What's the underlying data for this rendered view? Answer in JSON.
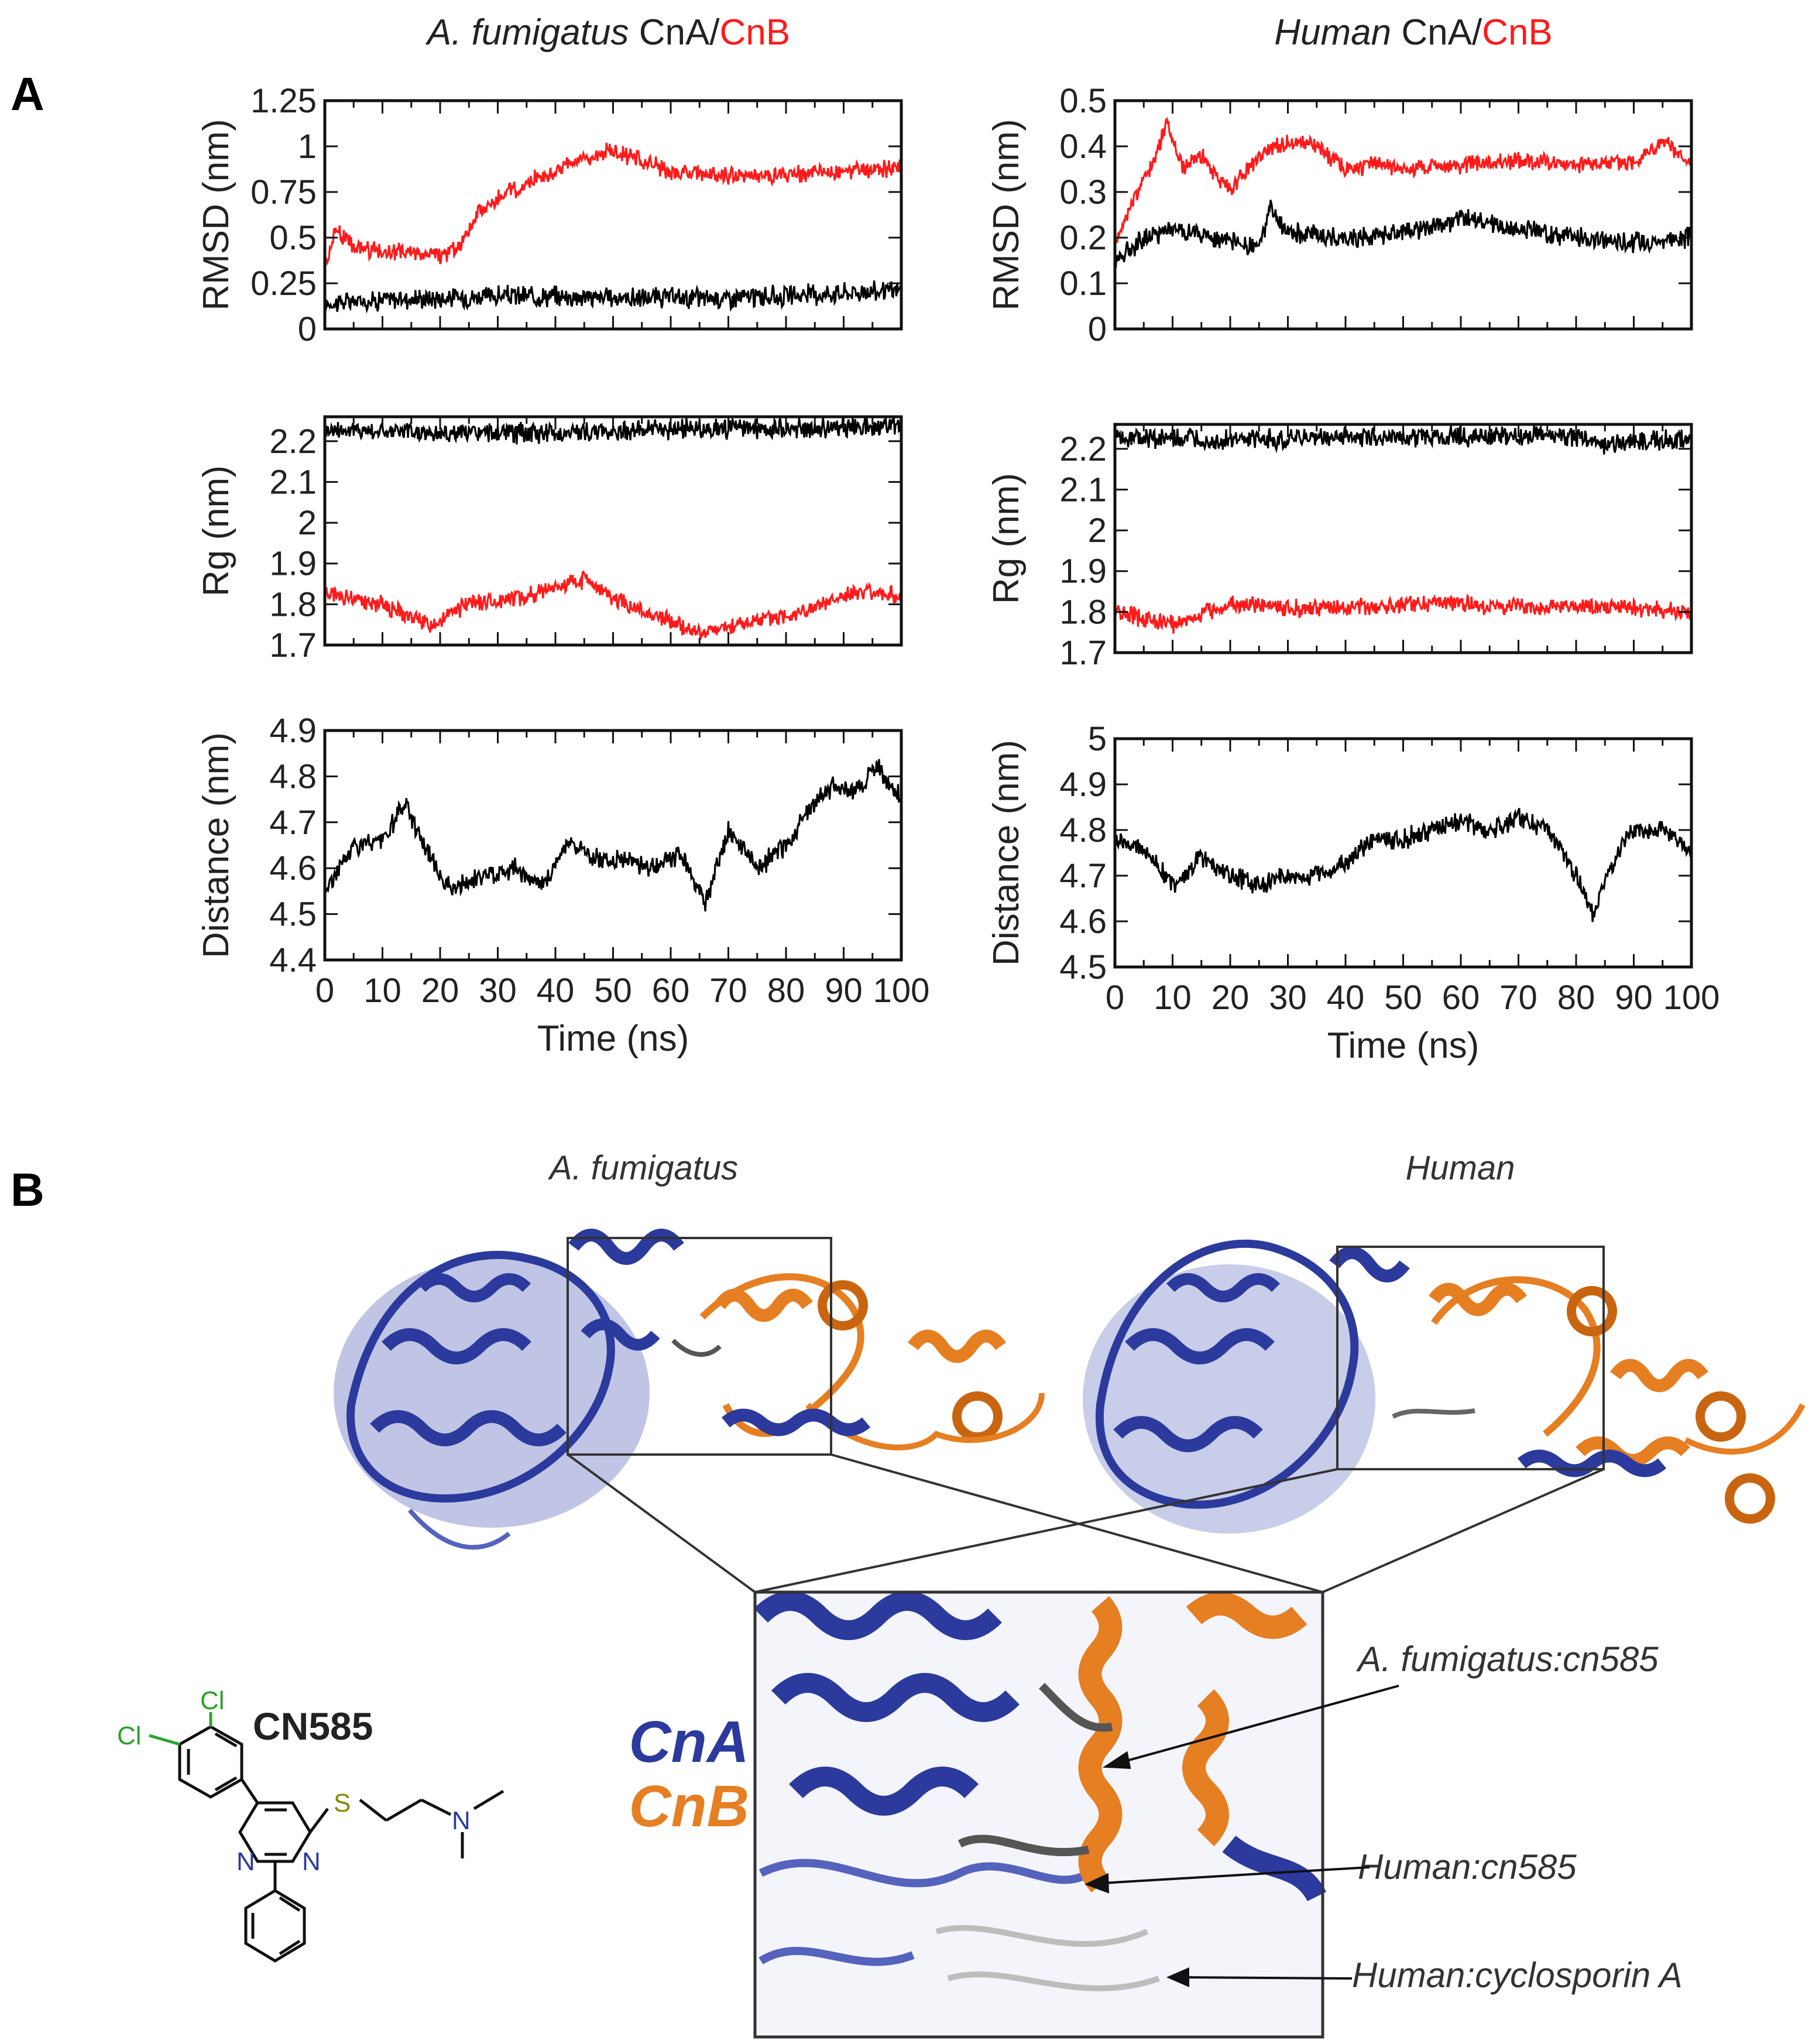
{
  "figure": {
    "panel_a_label": "A",
    "panel_b_label": "B",
    "col_titles": [
      {
        "italic": "A. fumigatus",
        "part1": "CnA/",
        "part2": "CnB"
      },
      {
        "italic": "Human",
        "part1": "CnA/",
        "part2": "CnB"
      }
    ],
    "colors": {
      "cna_series": "#000000",
      "cnb_series": "#ff1a1a",
      "cna_protein": "#2b3a9c",
      "cnb_protein": "#e67e22"
    }
  },
  "chart_data": [
    {
      "type": "line",
      "panel": "A",
      "organism": "A. fumigatus",
      "ylabel": "RMSD (nm)",
      "xlabel": "",
      "xlim": [
        0,
        100
      ],
      "ylim": [
        0,
        1.25
      ],
      "yticks": [
        "0",
        "0.25",
        "0.5",
        "0.75",
        "1",
        "1.25"
      ],
      "xticks": [],
      "series": [
        {
          "name": "CnA",
          "color": "#000000",
          "x": [
            0,
            10,
            20,
            30,
            40,
            50,
            60,
            70,
            80,
            90,
            100
          ],
          "values": [
            0.14,
            0.16,
            0.17,
            0.18,
            0.18,
            0.17,
            0.17,
            0.17,
            0.18,
            0.2,
            0.21
          ]
        },
        {
          "name": "CnB",
          "color": "#ff1a1a",
          "x": [
            0,
            2,
            5,
            10,
            15,
            20,
            23,
            27,
            32,
            38,
            45,
            50,
            55,
            60,
            70,
            80,
            90,
            100
          ],
          "values": [
            0.35,
            0.55,
            0.45,
            0.42,
            0.42,
            0.4,
            0.44,
            0.65,
            0.75,
            0.84,
            0.93,
            0.98,
            0.92,
            0.86,
            0.84,
            0.84,
            0.86,
            0.88
          ]
        }
      ]
    },
    {
      "type": "line",
      "panel": "A",
      "organism": "A. fumigatus",
      "ylabel": "Rg (nm)",
      "xlabel": "",
      "xlim": [
        0,
        100
      ],
      "ylim": [
        1.7,
        2.26
      ],
      "yticks": [
        "1.7",
        "1.8",
        "1.9",
        "2",
        "2.1",
        "2.2"
      ],
      "xticks": [],
      "series": [
        {
          "name": "CnA",
          "color": "#000000",
          "x": [
            0,
            20,
            40,
            60,
            80,
            100
          ],
          "values": [
            2.23,
            2.22,
            2.22,
            2.23,
            2.23,
            2.24
          ]
        },
        {
          "name": "CnB",
          "color": "#ff1a1a",
          "x": [
            0,
            10,
            18,
            25,
            35,
            45,
            52,
            58,
            65,
            75,
            85,
            92,
            100
          ],
          "values": [
            1.83,
            1.8,
            1.75,
            1.8,
            1.82,
            1.86,
            1.8,
            1.77,
            1.73,
            1.76,
            1.79,
            1.83,
            1.82
          ]
        }
      ]
    },
    {
      "type": "line",
      "panel": "A",
      "organism": "A. fumigatus",
      "ylabel": "Distance (nm)",
      "xlabel": "Time (ns)",
      "xlim": [
        0,
        100
      ],
      "ylim": [
        4.4,
        4.9
      ],
      "yticks": [
        "4.4",
        "4.5",
        "4.6",
        "4.7",
        "4.8",
        "4.9"
      ],
      "xticks": [
        "0",
        "10",
        "20",
        "30",
        "40",
        "50",
        "60",
        "70",
        "80",
        "90",
        "100"
      ],
      "series": [
        {
          "name": "CnA/CnB",
          "color": "#000000",
          "x": [
            0,
            5,
            10,
            14,
            18,
            22,
            27,
            33,
            38,
            42,
            47,
            52,
            57,
            62,
            66,
            70,
            75,
            80,
            85,
            88,
            92,
            96,
            100
          ],
          "values": [
            4.55,
            4.65,
            4.66,
            4.74,
            4.63,
            4.55,
            4.58,
            4.6,
            4.56,
            4.66,
            4.62,
            4.62,
            4.6,
            4.63,
            4.52,
            4.68,
            4.6,
            4.65,
            4.74,
            4.78,
            4.77,
            4.82,
            4.75
          ]
        }
      ]
    },
    {
      "type": "line",
      "panel": "A",
      "organism": "Human",
      "ylabel": "RMSD (nm)",
      "xlabel": "",
      "xlim": [
        0,
        100
      ],
      "ylim": [
        0,
        0.5
      ],
      "yticks": [
        "0",
        "0.1",
        "0.2",
        "0.3",
        "0.4",
        "0.5"
      ],
      "xticks": [],
      "series": [
        {
          "name": "CnA",
          "color": "#000000",
          "x": [
            0,
            5,
            10,
            20,
            25,
            27,
            30,
            40,
            50,
            60,
            70,
            80,
            90,
            100
          ],
          "values": [
            0.15,
            0.2,
            0.22,
            0.19,
            0.18,
            0.26,
            0.21,
            0.2,
            0.21,
            0.24,
            0.22,
            0.2,
            0.19,
            0.2
          ]
        },
        {
          "name": "CnB",
          "color": "#ff1a1a",
          "x": [
            0,
            3,
            6,
            9,
            12,
            15,
            20,
            25,
            30,
            35,
            40,
            45,
            50,
            60,
            70,
            80,
            90,
            95,
            100
          ],
          "values": [
            0.18,
            0.28,
            0.35,
            0.45,
            0.35,
            0.38,
            0.3,
            0.38,
            0.41,
            0.4,
            0.35,
            0.36,
            0.35,
            0.36,
            0.37,
            0.36,
            0.37,
            0.41,
            0.36
          ]
        }
      ]
    },
    {
      "type": "line",
      "panel": "A",
      "organism": "Human",
      "ylabel": "Rg (nm)",
      "xlabel": "",
      "xlim": [
        0,
        100
      ],
      "ylim": [
        1.7,
        2.26
      ],
      "yticks": [
        "1.7",
        "1.8",
        "1.9",
        "2",
        "2.1",
        "2.2"
      ],
      "xticks": [],
      "series": [
        {
          "name": "CnA",
          "color": "#000000",
          "x": [
            0,
            20,
            40,
            60,
            80,
            84,
            90,
            100
          ],
          "values": [
            2.23,
            2.22,
            2.23,
            2.23,
            2.23,
            2.21,
            2.22,
            2.22
          ]
        },
        {
          "name": "CnB",
          "color": "#ff1a1a",
          "x": [
            0,
            10,
            20,
            30,
            40,
            50,
            60,
            70,
            80,
            90,
            100
          ],
          "values": [
            1.8,
            1.77,
            1.82,
            1.81,
            1.81,
            1.82,
            1.82,
            1.81,
            1.81,
            1.81,
            1.8
          ]
        }
      ]
    },
    {
      "type": "line",
      "panel": "A",
      "organism": "Human",
      "ylabel": "Distance (nm)",
      "xlabel": "Time (ns)",
      "xlim": [
        0,
        100
      ],
      "ylim": [
        4.5,
        5.0
      ],
      "yticks": [
        "4.5",
        "4.6",
        "4.7",
        "4.8",
        "4.9",
        "5"
      ],
      "xticks": [
        "0",
        "10",
        "20",
        "30",
        "40",
        "50",
        "60",
        "70",
        "80",
        "90",
        "100"
      ],
      "series": [
        {
          "name": "CnA/CnB",
          "color": "#000000",
          "x": [
            0,
            5,
            10,
            15,
            20,
            25,
            30,
            35,
            40,
            45,
            50,
            55,
            60,
            65,
            70,
            75,
            80,
            83,
            86,
            90,
            95,
            100
          ],
          "values": [
            4.78,
            4.76,
            4.68,
            4.74,
            4.7,
            4.68,
            4.7,
            4.7,
            4.73,
            4.78,
            4.78,
            4.8,
            4.82,
            4.8,
            4.83,
            4.8,
            4.7,
            4.62,
            4.72,
            4.8,
            4.8,
            4.75
          ]
        }
      ]
    }
  ],
  "panel_b": {
    "structure_labels": [
      "A. fumigatus",
      "Human"
    ],
    "legend_cna": "CnA",
    "legend_cnb": "CnB",
    "annotations": [
      "A. fumigatus:cn585",
      "Human:cn585",
      "Human:cyclosporin A"
    ],
    "compound": {
      "name": "CN585",
      "atom_cl1": "Cl",
      "atom_cl2": "Cl",
      "atom_n1": "N",
      "atom_n2": "N",
      "atom_n3": "N",
      "atom_s": "S"
    }
  }
}
